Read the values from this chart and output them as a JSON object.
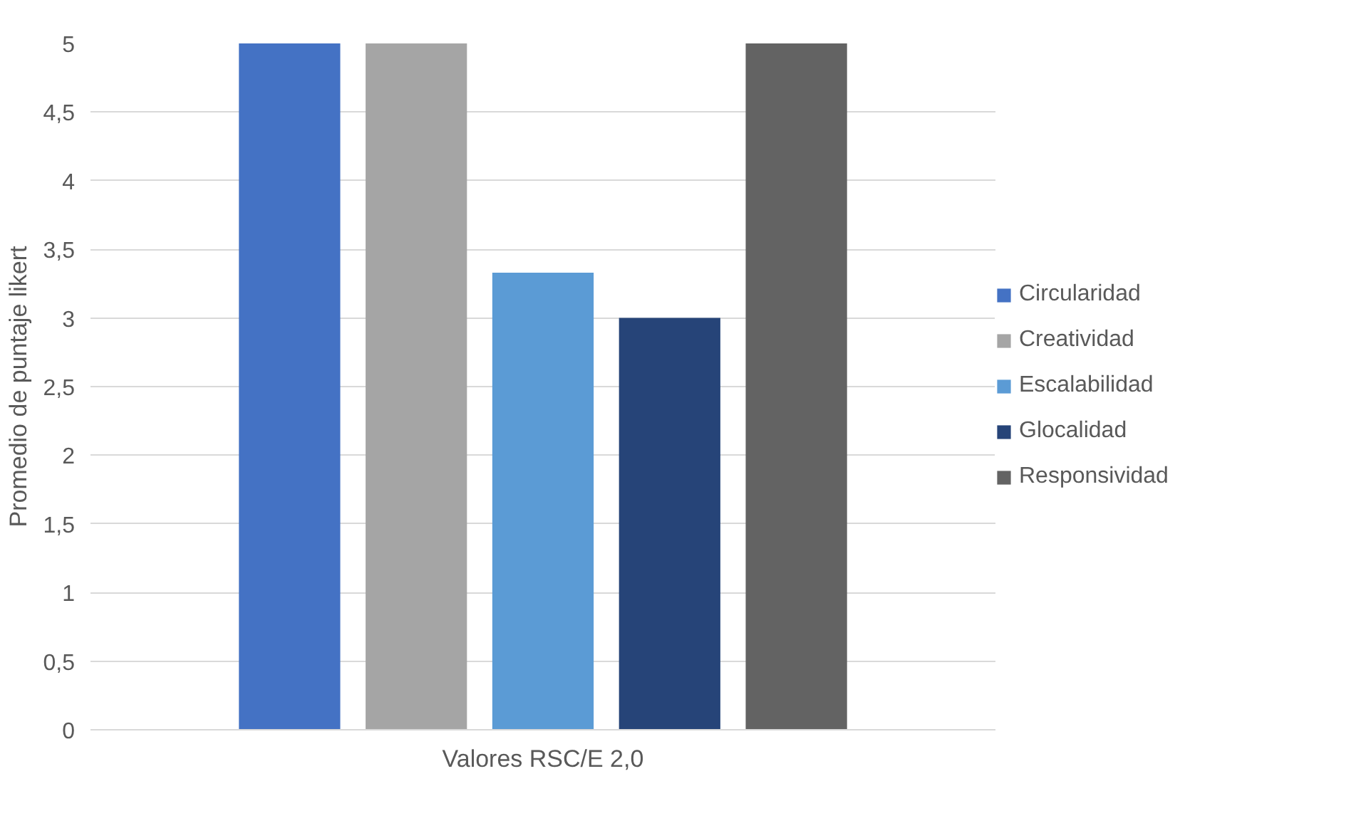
{
  "chart_data": {
    "type": "bar",
    "ylabel": "Promedio de puntaje likert",
    "categories": [
      "Valores RSC/E 2,0"
    ],
    "series": [
      {
        "name": "Circularidad",
        "color": "#4472c4",
        "values": [
          5
        ]
      },
      {
        "name": "Creatividad",
        "color": "#a5a5a5",
        "values": [
          5
        ]
      },
      {
        "name": "Escalabilidad",
        "color": "#5b9bd5",
        "values": [
          3.33
        ]
      },
      {
        "name": "Glocalidad",
        "color": "#264478",
        "values": [
          3
        ]
      },
      {
        "name": "Responsividad",
        "color": "#636363",
        "values": [
          5
        ]
      }
    ],
    "ylim": [
      0,
      5
    ],
    "yticks": [
      0,
      {
        "value": 0.5,
        "label": "0,5"
      },
      1,
      {
        "value": 1.5,
        "label": "1,5"
      },
      2,
      {
        "value": 2.5,
        "label": "2,5"
      },
      3,
      {
        "value": 3.5,
        "label": "3,5"
      },
      4,
      {
        "value": 4.5,
        "label": "4,5"
      },
      5
    ],
    "grid": "y",
    "legend": "right"
  }
}
